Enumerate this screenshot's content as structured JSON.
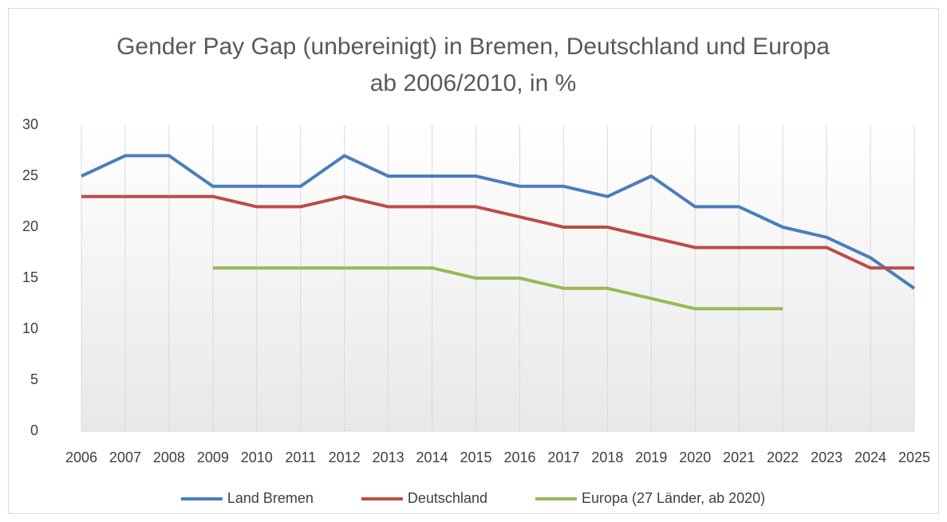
{
  "chart_data": {
    "type": "line",
    "title": "Gender Pay Gap (unbereinigt) in Bremen, Deutschland und Europa ab 2006/2010, in %",
    "categories": [
      "2006",
      "2007",
      "2008",
      "2009",
      "2010",
      "2011",
      "2012",
      "2013",
      "2014",
      "2015",
      "2016",
      "2017",
      "2018",
      "2019",
      "2020",
      "2021",
      "2022",
      "2023",
      "2024",
      "2025"
    ],
    "series": [
      {
        "name": "Land Bremen",
        "color": "#4a7ebb",
        "values": [
          25,
          27,
          27,
          24,
          24,
          24,
          27,
          25,
          25,
          25,
          24,
          24,
          23,
          25,
          22,
          22,
          20,
          19,
          17,
          14
        ]
      },
      {
        "name": "Deutschland",
        "color": "#be4b48",
        "values": [
          23,
          23,
          23,
          23,
          22,
          22,
          23,
          22,
          22,
          22,
          21,
          20,
          20,
          19,
          18,
          18,
          18,
          18,
          16,
          16
        ]
      },
      {
        "name": "Europa (27 Länder, ab 2020)",
        "color": "#98b954",
        "values": [
          null,
          null,
          null,
          16,
          16,
          16,
          16,
          16,
          16,
          15,
          15,
          14,
          14,
          13,
          12,
          12,
          12,
          null,
          null,
          null
        ]
      }
    ],
    "ylim": [
      0,
      30
    ],
    "yticks": [
      0,
      5,
      10,
      15,
      20,
      25,
      30
    ],
    "grid": "vertical",
    "legend": "bottom"
  }
}
